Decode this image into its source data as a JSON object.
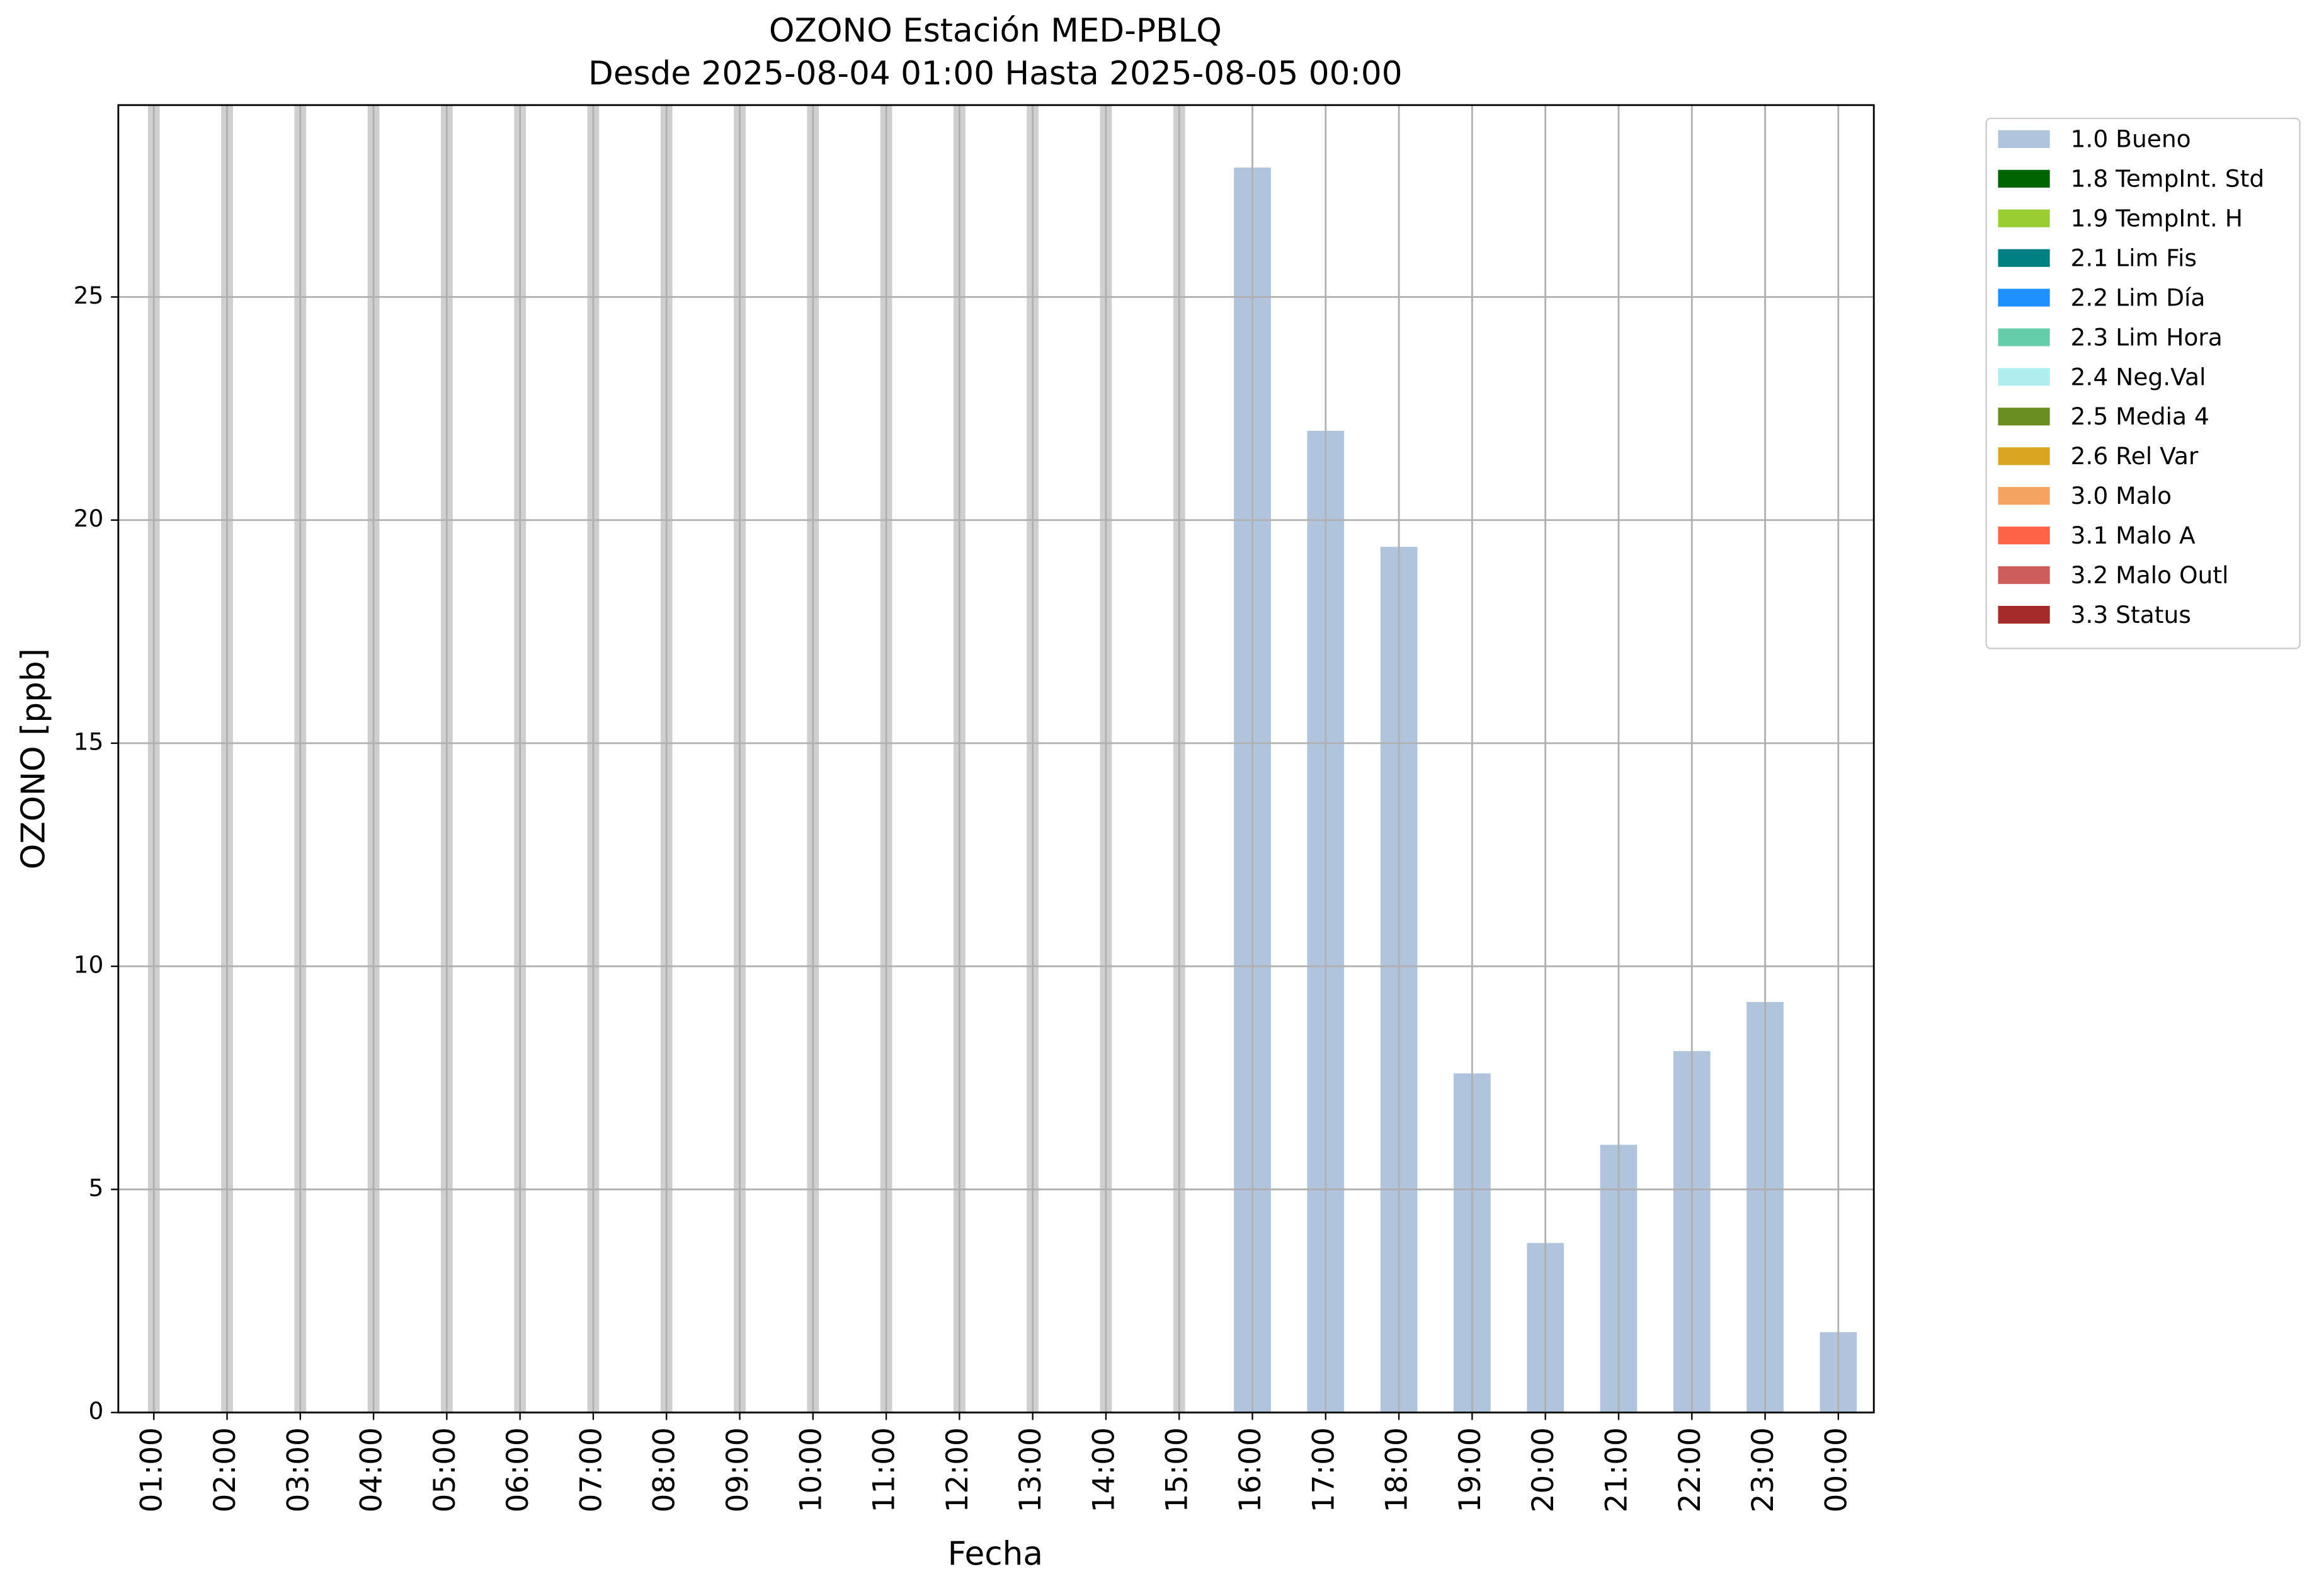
{
  "chart_data": {
    "type": "bar",
    "title": "OZONO Estación MED-PBLQ",
    "subtitle": "Desde 2025-08-04 01:00 Hasta 2025-08-05 00:00",
    "x_label": "Fecha",
    "y_label": "OZONO [ppb]",
    "categories": [
      "01:00",
      "02:00",
      "03:00",
      "04:00",
      "05:00",
      "06:00",
      "07:00",
      "08:00",
      "09:00",
      "10:00",
      "11:00",
      "12:00",
      "13:00",
      "14:00",
      "15:00",
      "16:00",
      "17:00",
      "18:00",
      "19:00",
      "20:00",
      "21:00",
      "22:00",
      "23:00",
      "00:00"
    ],
    "series": [
      {
        "name": "1.0 Bueno",
        "color": "#b0c4de",
        "values": [
          null,
          null,
          null,
          null,
          null,
          null,
          null,
          null,
          null,
          null,
          null,
          null,
          null,
          null,
          null,
          27.9,
          22.0,
          19.4,
          7.6,
          3.8,
          6.0,
          8.1,
          9.2,
          1.8
        ]
      },
      {
        "name": "1.8 TempInt. Std",
        "color": "#006400",
        "values": [
          null,
          null,
          null,
          null,
          null,
          null,
          null,
          null,
          null,
          null,
          null,
          null,
          null,
          null,
          null,
          null,
          null,
          null,
          null,
          null,
          null,
          null,
          null,
          null
        ]
      },
      {
        "name": "1.9 TempInt. H",
        "color": "#9acd32",
        "values": [
          null,
          null,
          null,
          null,
          null,
          null,
          null,
          null,
          null,
          null,
          null,
          null,
          null,
          null,
          null,
          null,
          null,
          null,
          null,
          null,
          null,
          null,
          null,
          null
        ]
      },
      {
        "name": "2.1 Lim Fis",
        "color": "#008080",
        "values": [
          null,
          null,
          null,
          null,
          null,
          null,
          null,
          null,
          null,
          null,
          null,
          null,
          null,
          null,
          null,
          null,
          null,
          null,
          null,
          null,
          null,
          null,
          null,
          null
        ]
      },
      {
        "name": "2.2 Lim Día",
        "color": "#1e90ff",
        "values": [
          null,
          null,
          null,
          null,
          null,
          null,
          null,
          null,
          null,
          null,
          null,
          null,
          null,
          null,
          null,
          null,
          null,
          null,
          null,
          null,
          null,
          null,
          null,
          null
        ]
      },
      {
        "name": "2.3 Lim Hora",
        "color": "#66cdaa",
        "values": [
          null,
          null,
          null,
          null,
          null,
          null,
          null,
          null,
          null,
          null,
          null,
          null,
          null,
          null,
          null,
          null,
          null,
          null,
          null,
          null,
          null,
          null,
          null,
          null
        ]
      },
      {
        "name": "2.4 Neg.Val",
        "color": "#afeeee",
        "values": [
          null,
          null,
          null,
          null,
          null,
          null,
          null,
          null,
          null,
          null,
          null,
          null,
          null,
          null,
          null,
          null,
          null,
          null,
          null,
          null,
          null,
          null,
          null,
          null
        ]
      },
      {
        "name": "2.5 Media 4",
        "color": "#6b8e23",
        "values": [
          null,
          null,
          null,
          null,
          null,
          null,
          null,
          null,
          null,
          null,
          null,
          null,
          null,
          null,
          null,
          null,
          null,
          null,
          null,
          null,
          null,
          null,
          null,
          null
        ]
      },
      {
        "name": "2.6 Rel Var",
        "color": "#daa520",
        "values": [
          null,
          null,
          null,
          null,
          null,
          null,
          null,
          null,
          null,
          null,
          null,
          null,
          null,
          null,
          null,
          null,
          null,
          null,
          null,
          null,
          null,
          null,
          null,
          null
        ]
      },
      {
        "name": "3.0 Malo",
        "color": "#f4a460",
        "values": [
          null,
          null,
          null,
          null,
          null,
          null,
          null,
          null,
          null,
          null,
          null,
          null,
          null,
          null,
          null,
          null,
          null,
          null,
          null,
          null,
          null,
          null,
          null,
          null
        ]
      },
      {
        "name": "3.1 Malo A",
        "color": "#ff6347",
        "values": [
          null,
          null,
          null,
          null,
          null,
          null,
          null,
          null,
          null,
          null,
          null,
          null,
          null,
          null,
          null,
          null,
          null,
          null,
          null,
          null,
          null,
          null,
          null,
          null
        ]
      },
      {
        "name": "3.2 Malo Outl",
        "color": "#cd5c5c",
        "values": [
          null,
          null,
          null,
          null,
          null,
          null,
          null,
          null,
          null,
          null,
          null,
          null,
          null,
          null,
          null,
          null,
          null,
          null,
          null,
          null,
          null,
          null,
          null,
          null
        ]
      },
      {
        "name": "3.3 Status",
        "color": "#a52a2a",
        "values": [
          null,
          null,
          null,
          null,
          null,
          null,
          null,
          null,
          null,
          null,
          null,
          null,
          null,
          null,
          null,
          null,
          null,
          null,
          null,
          null,
          null,
          null,
          null,
          null
        ]
      }
    ],
    "ylim": [
      0,
      29.3
    ],
    "yticks": [
      0,
      5,
      10,
      15,
      20,
      25
    ],
    "grid": true,
    "legend": "outside-upper-right"
  }
}
